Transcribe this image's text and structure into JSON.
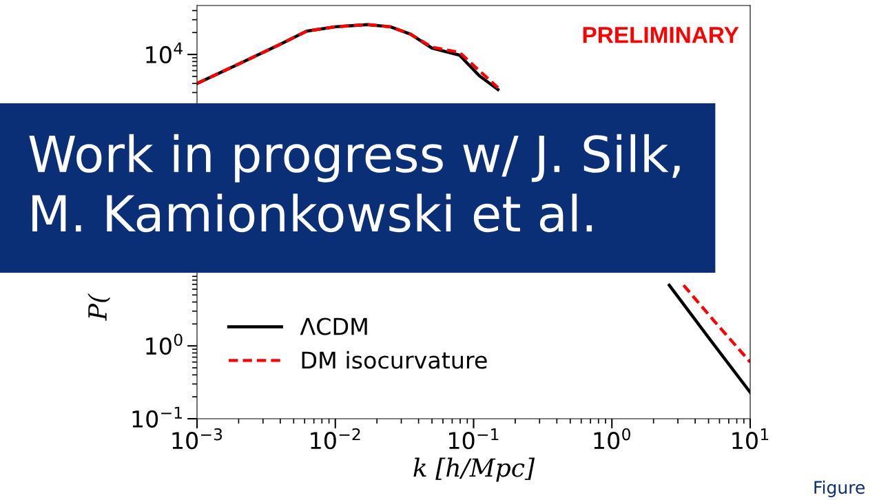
{
  "chart_data": {
    "type": "line",
    "xlabel": "k [h/Mpc]",
    "ylabel": "P(",
    "log": "xy",
    "xlim": [
      0.001,
      10
    ],
    "ylim": [
      0.1,
      47000
    ],
    "xticks": [
      {
        "value": 0.001,
        "label": "10$^{−3}$"
      },
      {
        "value": 0.01,
        "label": "10$^{−2}$"
      },
      {
        "value": 0.1,
        "label": "10$^{−1}$"
      },
      {
        "value": 1,
        "label": "10$^{0}$"
      },
      {
        "value": 10,
        "label": "10$^{1}$"
      }
    ],
    "yticks": [
      {
        "value": 0.1,
        "label": "10$^{−1}$"
      },
      {
        "value": 1,
        "label": "10$^{0}$"
      },
      {
        "value": 10000,
        "label": "10$^{4}$"
      }
    ],
    "series": [
      {
        "name": "ΛCDM",
        "color": "#000000",
        "line_style": "solid",
        "x": [
          0.001,
          0.002,
          0.004,
          0.0062,
          0.01,
          0.017,
          0.025,
          0.035,
          0.05,
          0.079,
          0.11,
          0.15,
          0.2,
          2.6,
          5.0,
          10
        ],
        "values": [
          4000,
          7400,
          13800,
          20900,
          24000,
          25700,
          24000,
          19000,
          12200,
          9800,
          5100,
          3300,
          null,
          6.8,
          1.3,
          0.23
        ]
      },
      {
        "name": "DM isocurvature",
        "color": "#ff0000",
        "line_style": "dashed",
        "x": [
          0.001,
          0.002,
          0.004,
          0.0062,
          0.01,
          0.017,
          0.025,
          0.035,
          0.05,
          0.079,
          0.11,
          0.15,
          0.2,
          3.3,
          5.6,
          10
        ],
        "values": [
          4000,
          7400,
          13800,
          20900,
          24000,
          25700,
          24000,
          19000,
          12600,
          10700,
          6000,
          3500,
          null,
          6.8,
          2.1,
          0.6
        ]
      }
    ],
    "legend": "bottom left",
    "grid": false,
    "marker": "none",
    "annotations": [
      "PRELIMINARY",
      "Work in progress w/ J. Silk,\nM. Kamionkowski et al.",
      "Figure"
    ]
  }
}
